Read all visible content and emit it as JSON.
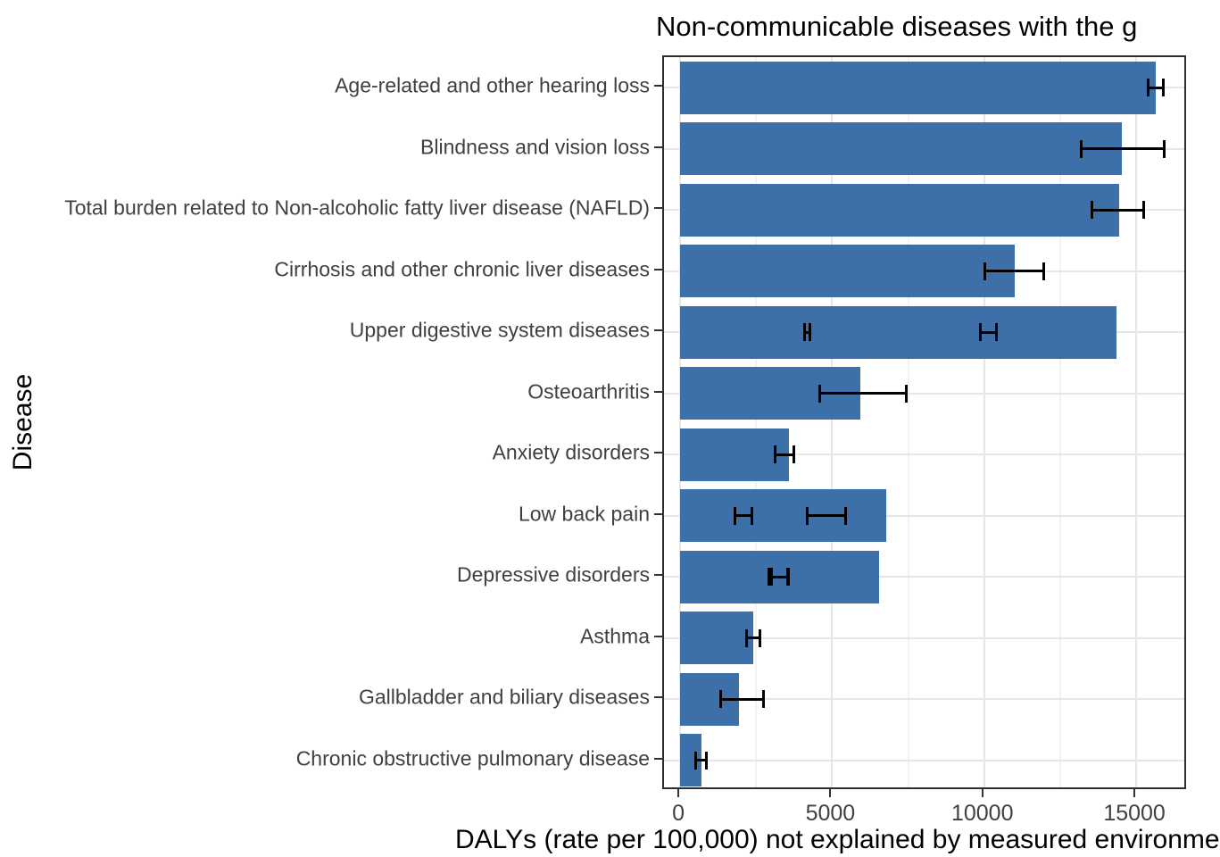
{
  "chart_data": {
    "type": "bar",
    "orientation": "horizontal",
    "title": "Non-communicable diseases with the g",
    "xlabel": "DALYs (rate per 100,000) not explained by measured environme",
    "ylabel": "Disease",
    "bar_color": "#3d6fa8",
    "error_bar_color": "#000000",
    "grid": true,
    "legend": false,
    "x_axis": {
      "ticks": [
        0,
        5000,
        10000,
        15000
      ],
      "tick_labels": [
        "0",
        "5000",
        "10000",
        "15000"
      ],
      "minor_ticks": [
        2500,
        7500,
        12500
      ],
      "range": [
        -530,
        16700
      ]
    },
    "categories": [
      "Age-related and other hearing loss",
      "Blindness and vision loss",
      "Total burden related to Non-alcoholic fatty liver disease (NAFLD)",
      "Cirrhosis and other chronic liver diseases",
      "Upper digestive system diseases",
      "Osteoarthritis",
      "Anxiety disorders",
      "Low back pain",
      "Depressive disorders",
      "Asthma",
      "Gallbladder and biliary diseases",
      "Chronic obstructive pulmonary disease"
    ],
    "values": [
      15640,
      14520,
      14450,
      11000,
      14350,
      5930,
      3570,
      6770,
      6530,
      2410,
      1940,
      700
    ],
    "error_bars": [
      [
        [
          15400,
          15890
        ]
      ],
      [
        [
          13180,
          15920
        ]
      ],
      [
        [
          13540,
          15250
        ]
      ],
      [
        [
          10020,
          11950
        ]
      ],
      [
        [
          4090,
          4270
        ],
        [
          9890,
          10410
        ]
      ],
      [
        [
          4580,
          7430
        ]
      ],
      [
        [
          3110,
          3750
        ]
      ],
      [
        [
          1790,
          2350
        ],
        [
          4170,
          5450
        ]
      ],
      [
        [
          2910,
          3540
        ],
        [
          3010,
          3560
        ]
      ],
      [
        [
          2180,
          2640
        ]
      ],
      [
        [
          1320,
          2740
        ]
      ],
      [
        [
          520,
          860
        ]
      ]
    ]
  }
}
